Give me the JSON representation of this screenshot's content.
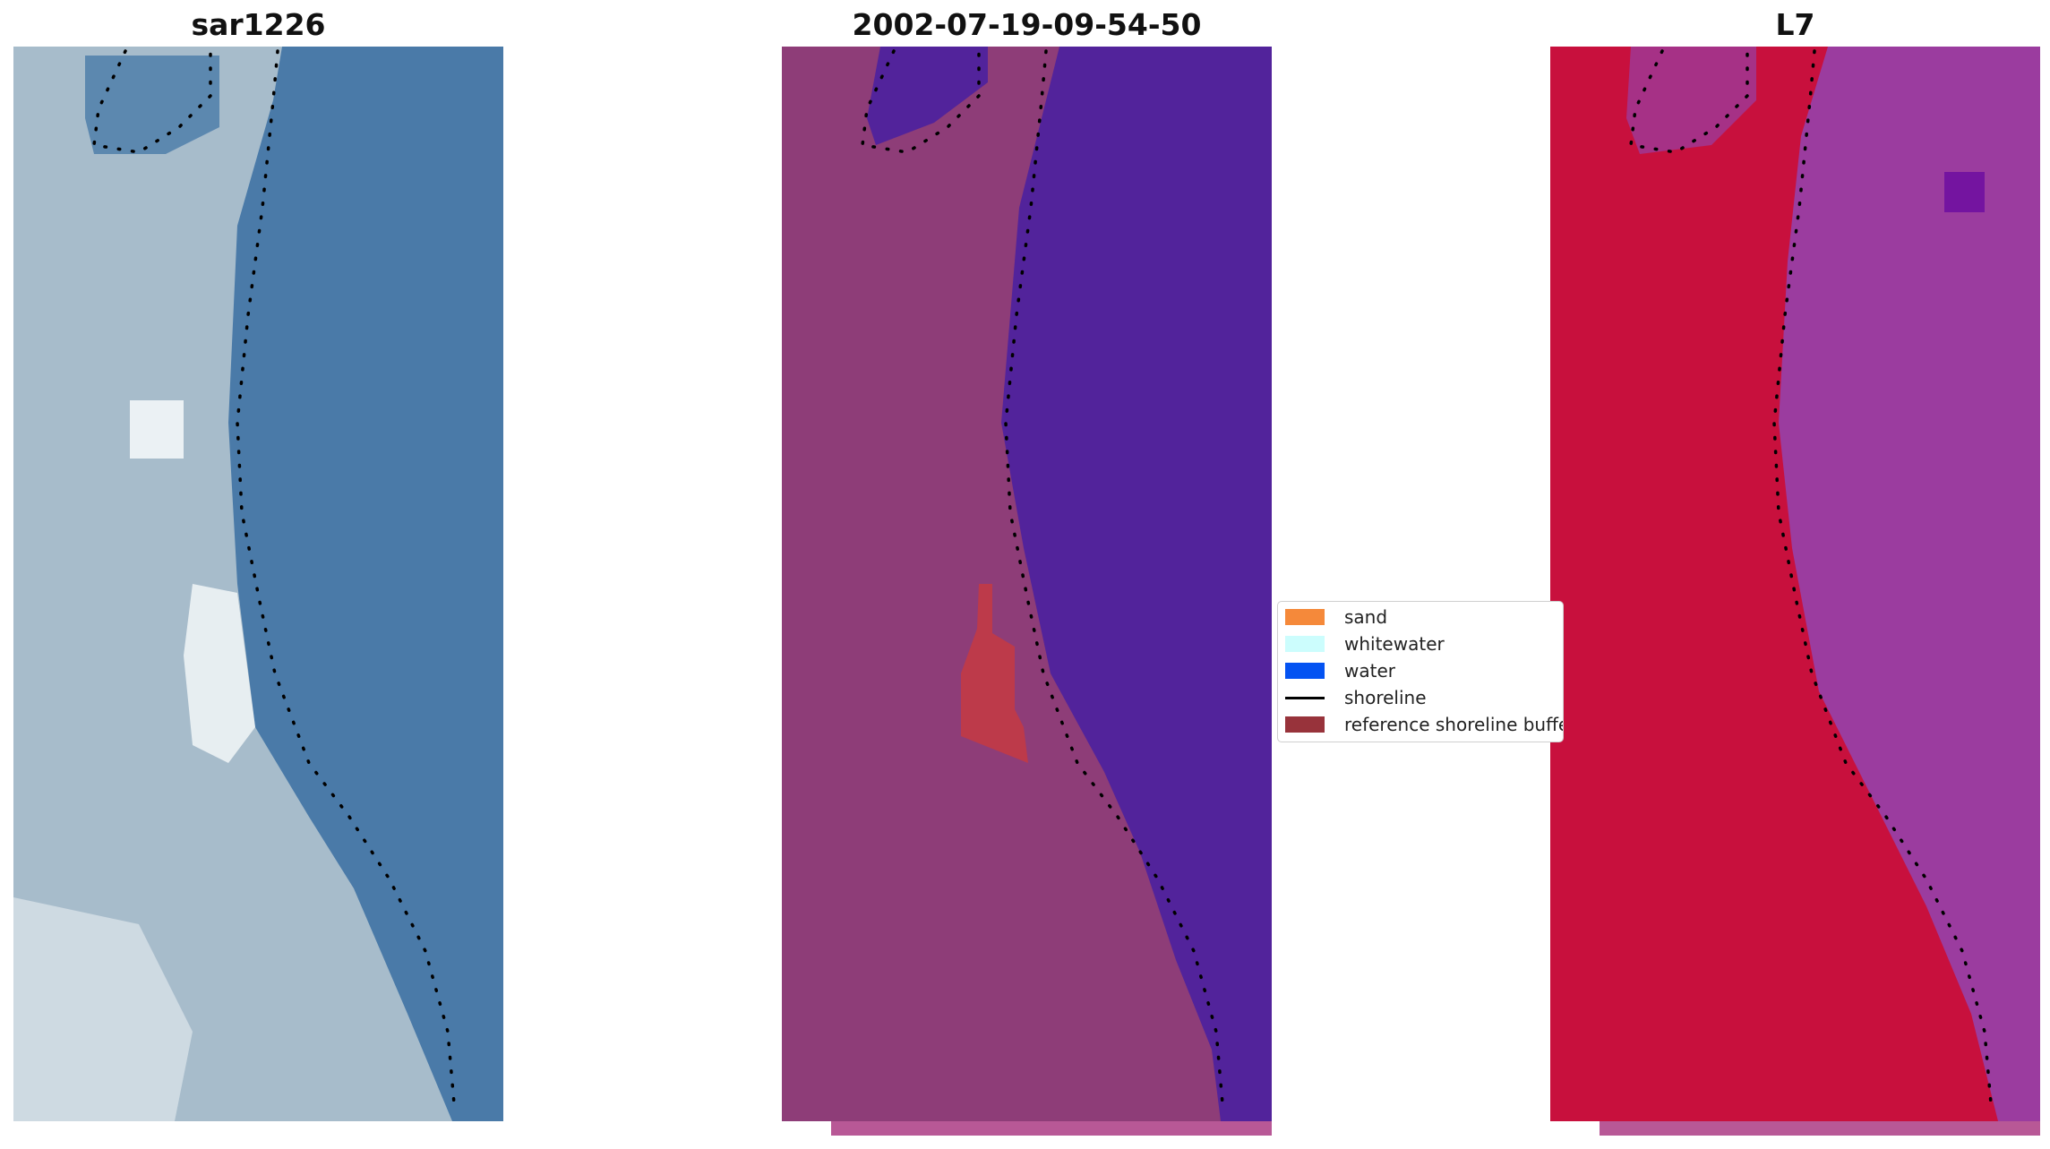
{
  "panels": [
    {
      "title": "sar1226",
      "style": "rgb"
    },
    {
      "title": "2002-07-19-09-54-50",
      "style": "classified"
    },
    {
      "title": "L7",
      "style": "index"
    }
  ],
  "legend": [
    {
      "label": "sand",
      "color": "#f5893a",
      "kind": "patch"
    },
    {
      "label": "whitewater",
      "color": "#ccfdfd",
      "kind": "patch"
    },
    {
      "label": "water",
      "color": "#0453f2",
      "kind": "patch"
    },
    {
      "label": "shoreline",
      "color": "#000000",
      "kind": "line"
    },
    {
      "label": "reference shoreline buffer",
      "color": "#98333b",
      "kind": "patch"
    }
  ],
  "colors": {
    "rgb_land": "#a7bccb",
    "rgb_water": "#4a7aa8",
    "rgb_bright": "#eef3f5",
    "class_land": "#8e3d78",
    "class_water": "#52239b",
    "class_buffer": "#bd3a4a",
    "class_strip": "#b85896",
    "index_land": "#c8103d",
    "index_water": "#9b3c9f",
    "index_strip": "#b85896",
    "shoreline": "#000000"
  }
}
